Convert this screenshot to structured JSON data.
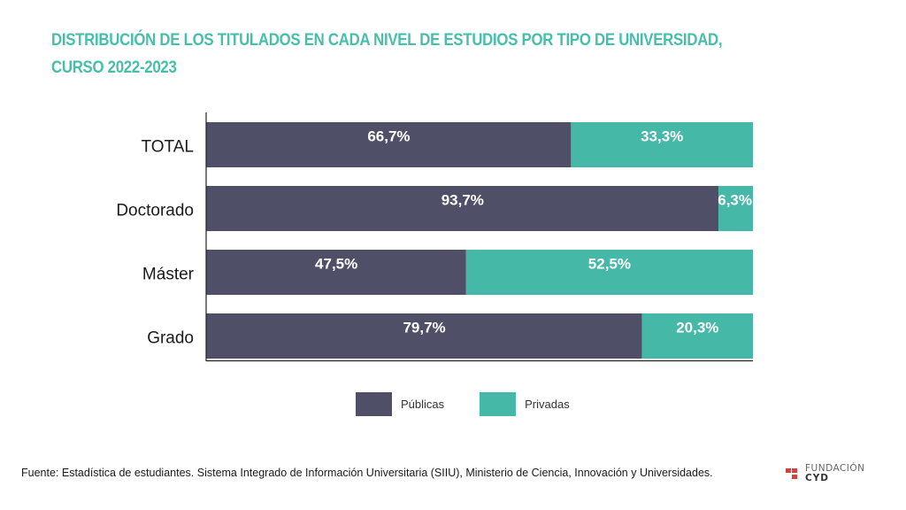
{
  "chart_data": {
    "type": "bar",
    "orientation": "horizontal",
    "stacked": true,
    "normalized": true,
    "title_lines": [
      "DISTRIBUCIÓN DE LOS TITULADOS EN CADA NIVEL DE ESTUDIOS POR TIPO DE UNIVERSIDAD,",
      "CURSO 2022-2023"
    ],
    "categories": [
      "TOTAL",
      "Doctorado",
      "Máster",
      "Grado"
    ],
    "series": [
      {
        "name": "Públicas",
        "color": "#4f5068",
        "values": [
          66.7,
          93.7,
          47.5,
          79.7
        ],
        "labels": [
          "66,7%",
          "93,7%",
          "47,5%",
          "79,7%"
        ]
      },
      {
        "name": "Privadas",
        "color": "#45b8a8",
        "values": [
          33.3,
          6.3,
          52.5,
          20.3
        ],
        "labels": [
          "33,3%",
          "6,3%",
          "52,5%",
          "20,3%"
        ]
      }
    ],
    "xlim": [
      0,
      100
    ],
    "xlabel": "",
    "ylabel": "",
    "grid": false,
    "legend_position": "bottom-center"
  },
  "source_text": "Fuente: Estadística de estudiantes. Sistema Integrado de Información Universitaria (SIIU), Ministerio de Ciencia, Innovación y Universidades.",
  "logo": {
    "line1": "FUNDACIÓN",
    "line2": "CYD",
    "color": "#d9403a"
  },
  "title_color": "#45bfa8"
}
